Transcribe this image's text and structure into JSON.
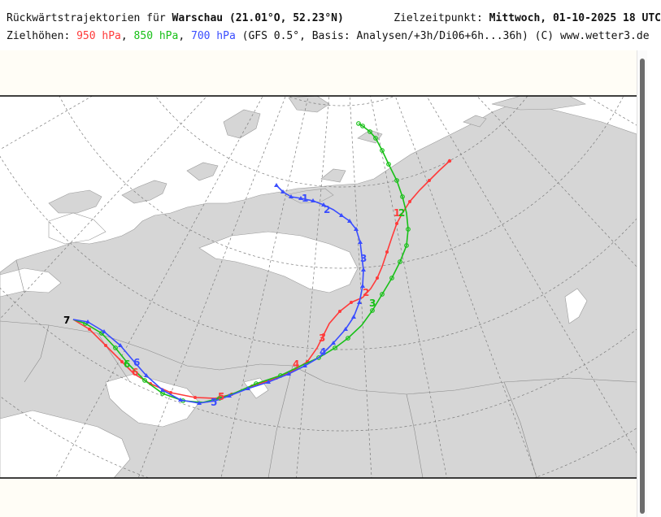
{
  "header": {
    "line1_prefix": "Rückwärtstrajektorien für ",
    "station": "Warschau",
    "coords": " (21.01°O, 52.23°N)",
    "target_label": "Zielzeitpunkt: ",
    "target_time": "Mittwoch, 01-10-2025  18 UTC",
    "line2_prefix": "Zielhöhen: ",
    "level_950": "950 hPa",
    "level_850": "850 hPa",
    "level_700": "700 hPa",
    "sep1": ", ",
    "sep2": ", ",
    "line2_suffix": " (GFS 0.5°, Basis: Analysen/+3h/Di06+6h...36h)  (C) www.wetter3.de"
  },
  "trajectories": [
    {
      "level": "950 hPa",
      "color": "#ff3b3b"
    },
    {
      "level": "850 hPa",
      "color": "#18c018"
    },
    {
      "level": "700 hPa",
      "color": "#3a4dff"
    }
  ],
  "labels": {
    "start": "7",
    "red": [
      "1",
      "2",
      "3",
      "4",
      "5",
      "6"
    ],
    "green": [
      "2",
      "3",
      "6"
    ],
    "blue": [
      "1",
      "2",
      "3",
      "4",
      "5",
      "6"
    ]
  }
}
